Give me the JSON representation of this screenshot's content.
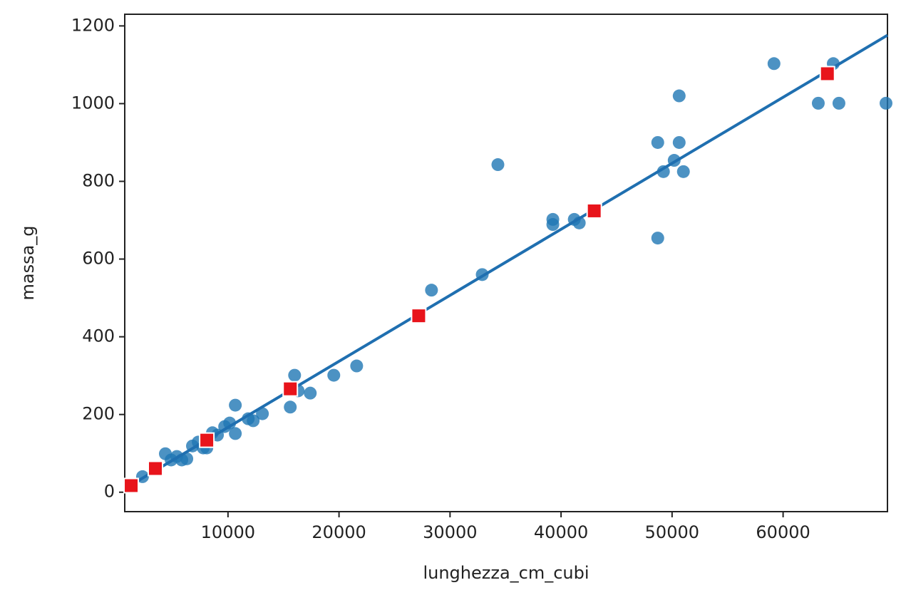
{
  "chart_data": {
    "type": "scatter",
    "xlabel": "lunghezza_cm_cubi",
    "ylabel": "massa_g",
    "xlim": [
      700,
      69400
    ],
    "ylim": [
      -50,
      1230
    ],
    "xticks": [
      10000,
      20000,
      30000,
      40000,
      50000,
      60000
    ],
    "yticks": [
      0,
      200,
      400,
      600,
      800,
      1000,
      1200
    ],
    "series": [
      {
        "color": "#1f77b4",
        "marker": "circle",
        "x": [
          1340,
          2300,
          4360,
          4880,
          5390,
          5840,
          6290,
          6800,
          7320,
          7770,
          8090,
          8600,
          9050,
          9700,
          10150,
          10660,
          10660,
          11820,
          12270,
          13100,
          15610,
          16000,
          16320,
          17410,
          19530,
          21590,
          28330,
          32900,
          34310,
          39260,
          39260,
          41190,
          41640,
          48710,
          48710,
          49220,
          50190,
          50640,
          50640,
          51020,
          59180,
          63170,
          64520,
          65030,
          69270
        ],
        "values": [
          18,
          40,
          99,
          83,
          92,
          83,
          86,
          119,
          129,
          114,
          114,
          153,
          147,
          169,
          178,
          224,
          151,
          189,
          184,
          202,
          219,
          301,
          261,
          255,
          301,
          325,
          520,
          560,
          843,
          702,
          689,
          702,
          693,
          900,
          654,
          825,
          854,
          1020,
          900,
          825,
          1103,
          1001,
          1103,
          1001,
          1001
        ]
      },
      {
        "color": "#e8141b",
        "marker": "square",
        "x": [
          1280,
          3460,
          8090,
          15610,
          27180,
          42990,
          63990
        ],
        "values": [
          17,
          61,
          134,
          266,
          454,
          724,
          1077
        ]
      }
    ],
    "line": {
      "color": "#1f6fb0",
      "x": [
        700,
        69400
      ],
      "values": [
        9,
        1176
      ]
    }
  }
}
